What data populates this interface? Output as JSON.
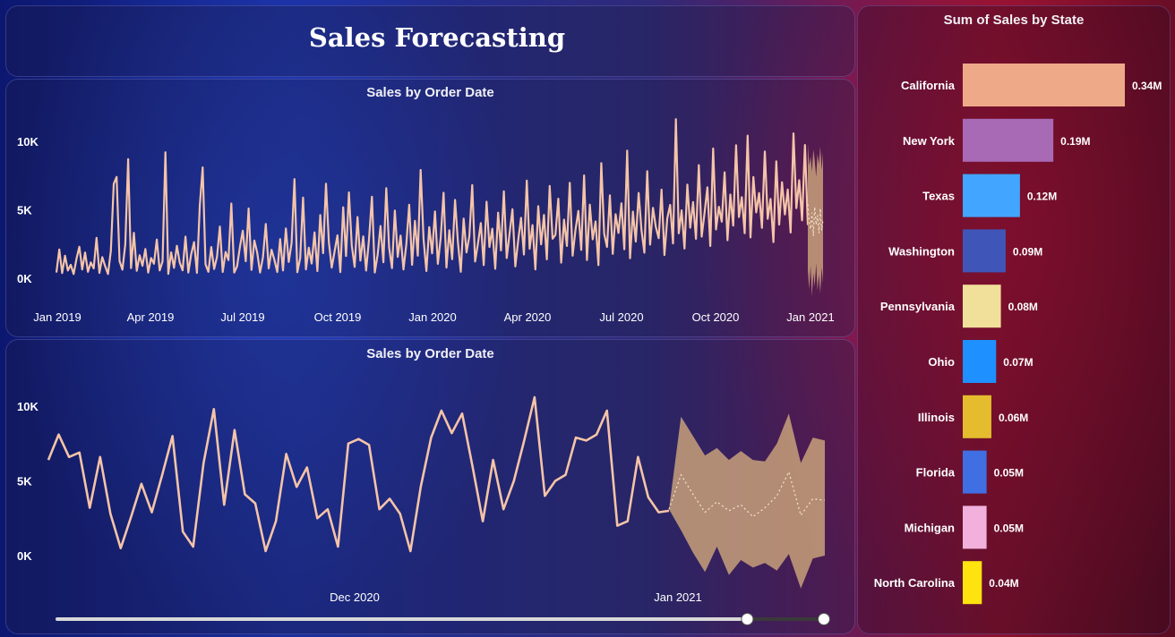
{
  "page_title": "Sales Forecasting",
  "colors": {
    "line": "#f5c4a8",
    "forecast_band": "#c8a07a",
    "forecast_line": "#f5e6d0"
  },
  "chart_data": [
    {
      "type": "line",
      "title": "Sales by Order Date",
      "x_tick_labels": [
        "Jan 2019",
        "Apr 2019",
        "Jul 2019",
        "Oct 2019",
        "Jan 2020",
        "Apr 2020",
        "Jul 2020",
        "Oct 2020",
        "Jan 2021"
      ],
      "y_tick_labels": [
        "0K",
        "5K",
        "10K"
      ],
      "ylim": [
        0,
        12000
      ],
      "series": [
        {
          "values": [
            420,
            2100,
            380,
            1650,
            560,
            980,
            310,
            1420,
            2300,
            640,
            1880,
            470,
            1160,
            720,
            2950,
            390,
            1540,
            880,
            310,
            2010,
            6900,
            7400,
            1250,
            630,
            2480,
            8700,
            740,
            3320,
            540,
            1680,
            910,
            2140,
            410,
            1480,
            1060,
            2830,
            570,
            1230,
            9200,
            320,
            1890,
            760,
            2370,
            1140,
            580,
            3040,
            420,
            1760,
            2640,
            390,
            5320,
            8100,
            1010,
            470,
            2280,
            680,
            1560,
            3780,
            460,
            1920,
            1330,
            5460,
            420,
            860,
            2290,
            3480,
            1240,
            5100,
            610,
            2760,
            1870,
            420,
            1530,
            3960,
            720,
            2080,
            1340,
            460,
            2860,
            570,
            3640,
            1190,
            2580,
            7240,
            440,
            1480,
            5890,
            650,
            2230,
            1070,
            3350,
            520,
            4620,
            1830,
            6910,
            2650,
            780,
            1960,
            3140,
            450,
            5180,
            1620,
            6270,
            2380,
            830,
            4470,
            1290,
            3060,
            560,
            2810,
            5960,
            420,
            1730,
            3820,
            1170,
            6580,
            2230,
            740,
            4940,
            1560,
            3120,
            640,
            2480,
            5370,
            980,
            4190,
            1650,
            7910,
            2890,
            530,
            3740,
            1820,
            4880,
            1050,
            2960,
            6240,
            780,
            3510,
            1390,
            5720,
            2640,
            470,
            4360,
            1890,
            3070,
            6810,
            1220,
            2540,
            4030,
            960,
            5590,
            2280,
            3620,
            690,
            4790,
            2030,
            6350,
            1480,
            3270,
            5040,
            860,
            2760,
            4410,
            1730,
            7140,
            2150,
            3880,
            640,
            5260,
            2470,
            4630,
            1380,
            6740,
            2890,
            3170,
            5810,
            1140,
            4280,
            2360,
            6970,
            1650,
            3540,
            4920,
            2070,
            7510,
            1330,
            5380,
            2840,
            4150,
            960,
            8410,
            3260,
            2290,
            6050,
            1780,
            4670,
            3310,
            5480,
            2120,
            9320,
            1460,
            4870,
            2680,
            6230,
            3510,
            1870,
            7820,
            2460,
            5140,
            3740,
            2930,
            6470,
            1690,
            4380,
            5360,
            2540,
            11620,
            3280,
            4960,
            2170,
            6840,
            3690,
            5570,
            2880,
            8260,
            3040,
            4780,
            6650,
            2350,
            9480,
            3560,
            5220,
            4130,
            7740,
            2780,
            6110,
            3840,
            9710,
            4470,
            5930,
            3290,
            10420,
            2980,
            7390,
            4810,
            6230,
            3680,
            9260,
            4340,
            5790,
            2640,
            8540,
            3920,
            7010,
            4660,
            6480,
            3340,
            10580,
            5120,
            7160,
            4230,
            9730,
            3880
          ],
          "forecast_values": [
            5400,
            4200,
            3600,
            4800,
            3100,
            5200,
            3900,
            4600,
            3300,
            5100,
            3500,
            4300
          ],
          "forecast_upper": [
            9800,
            8200,
            8900,
            7800,
            9400,
            8600,
            7400,
            9100,
            8300,
            9600,
            7900,
            9200
          ],
          "forecast_lower": [
            600,
            -800,
            900,
            -1300,
            400,
            -600,
            1100,
            -900,
            300,
            -1100,
            800,
            -400
          ]
        }
      ]
    },
    {
      "type": "line",
      "title": "Sales by Order Date",
      "x_tick_labels": [
        "Dec 2020",
        "Jan 2021"
      ],
      "y_tick_labels": [
        "0K",
        "5K",
        "10K"
      ],
      "ylim": [
        -2000,
        12000
      ],
      "series": [
        {
          "values": [
            6400,
            8100,
            6600,
            6900,
            3200,
            6600,
            2800,
            500,
            2600,
            4800,
            2900,
            5400,
            8000,
            1600,
            600,
            6200,
            9800,
            3400,
            8400,
            4100,
            3500,
            300,
            2300,
            6800,
            4600,
            5900,
            2500,
            3100,
            600,
            7500,
            7800,
            7400,
            3100,
            3800,
            2800,
            300,
            4600,
            7900,
            9700,
            8200,
            9500,
            6000,
            2300,
            6400,
            3100,
            5000,
            7700,
            10600,
            4000,
            5000,
            5400,
            7900,
            7700,
            8100,
            9700,
            2000,
            2300,
            6600,
            3900,
            2900,
            3000
          ],
          "forecast_values": [
            3100,
            5400,
            4100,
            2900,
            3600,
            3000,
            3400,
            2600,
            3200,
            4000,
            5600,
            2700,
            3800,
            3700
          ],
          "forecast_upper": [
            3100,
            9300,
            8000,
            6700,
            7200,
            6400,
            7000,
            6400,
            6300,
            7500,
            9500,
            6200,
            7900,
            7700
          ],
          "forecast_lower": [
            3100,
            1700,
            200,
            -1100,
            600,
            -1300,
            -300,
            -800,
            -500,
            -1000,
            100,
            -2200,
            -200,
            0
          ]
        }
      ]
    },
    {
      "type": "bar",
      "orientation": "horizontal",
      "title": "Sum of Sales by State",
      "categories": [
        "California",
        "New York",
        "Texas",
        "Washington",
        "Pennsylvania",
        "Ohio",
        "Illinois",
        "Florida",
        "Michigan",
        "North Carolina"
      ],
      "values": [
        0.34,
        0.19,
        0.12,
        0.09,
        0.08,
        0.07,
        0.06,
        0.05,
        0.05,
        0.04
      ],
      "value_labels": [
        "0.34M",
        "0.19M",
        "0.12M",
        "0.09M",
        "0.08M",
        "0.07M",
        "0.06M",
        "0.05M",
        "0.05M",
        "0.04M"
      ],
      "bar_colors": [
        "#eea988",
        "#a86ab5",
        "#42a5ff",
        "#4055b8",
        "#f1e09a",
        "#1e90ff",
        "#e4bc2e",
        "#3f6fe2",
        "#f2b1dc",
        "#ffe30f"
      ]
    }
  ],
  "slider": {
    "range_start": 0.9,
    "range_end": 1.0
  }
}
